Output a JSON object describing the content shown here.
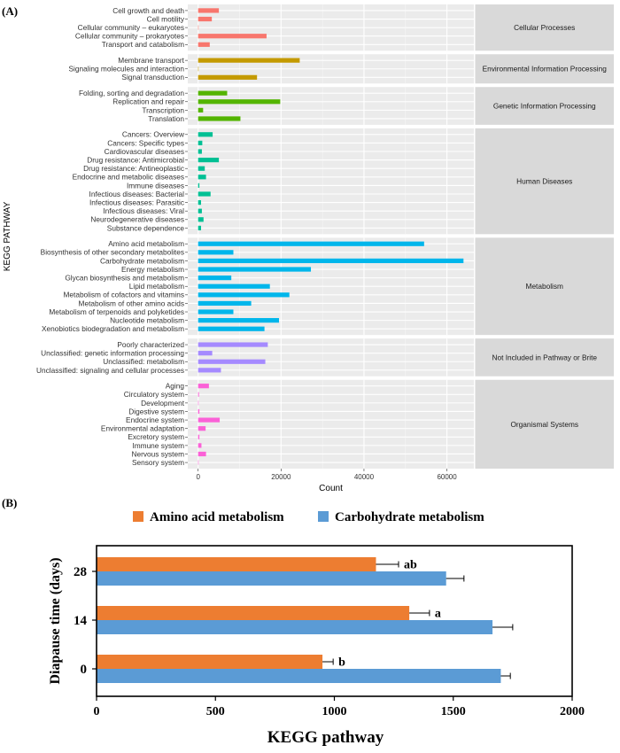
{
  "panel_a_label": "(A)",
  "panel_b_label": "(B)",
  "chart_data": [
    {
      "type": "bar",
      "orientation": "horizontal",
      "xlabel": "Count",
      "ylabel": "KEGG PATHWAY",
      "xlim": [
        -2500,
        66500
      ],
      "xticks": [
        0,
        20000,
        40000,
        60000
      ],
      "xtick_labels": [
        "0",
        "20000",
        "40000",
        "60000"
      ],
      "grid": true,
      "facets": [
        {
          "name": "Cellular Processes",
          "color": "#F8766D",
          "categories": [
            "Cell growth and death",
            "Cell motility",
            "Cellular community – eukaryotes",
            "Cellular community – prokaryotes",
            "Transport and catabolism"
          ],
          "values": [
            5000,
            3300,
            100,
            16500,
            2800
          ]
        },
        {
          "name": "Environmental Information Processing",
          "color": "#C49A00",
          "categories": [
            "Membrane transport",
            "Signaling molecules and interaction",
            "Signal transduction"
          ],
          "values": [
            24500,
            100,
            14200
          ]
        },
        {
          "name": "Genetic Information Processing",
          "color": "#53B400",
          "categories": [
            "Folding, sorting and degradation",
            "Replication and repair",
            "Transcription",
            "Translation"
          ],
          "values": [
            7000,
            19800,
            1200,
            10200
          ]
        },
        {
          "name": "Human Diseases",
          "color": "#00C094",
          "categories": [
            "Cancers: Overview",
            "Cancers: Specific types",
            "Cardiovascular diseases",
            "Drug resistance: Antimicrobial",
            "Drug resistance: Antineoplastic",
            "Endocrine and metabolic diseases",
            "Immune diseases",
            "Infectious diseases: Bacterial",
            "Infectious diseases: Parasitic",
            "Infectious diseases: Viral",
            "Neurodegenerative diseases",
            "Substance dependence"
          ],
          "values": [
            3500,
            1000,
            900,
            5000,
            1600,
            1900,
            300,
            3000,
            700,
            900,
            1300,
            700
          ]
        },
        {
          "name": "Metabolism",
          "color": "#00B6EB",
          "categories": [
            "Amino acid metabolism",
            "Biosynthesis of other secondary metabolites",
            "Carbohydrate metabolism",
            "Energy metabolism",
            "Glycan biosynthesis and metabolism",
            "Lipid metabolism",
            "Metabolism of cofactors and vitamins",
            "Metabolism of other amino acids",
            "Metabolism of terpenoids and polyketides",
            "Nucleotide metabolism",
            "Xenobiotics biodegradation and metabolism"
          ],
          "values": [
            54500,
            8500,
            64000,
            27200,
            8000,
            17300,
            22000,
            12800,
            8500,
            19500,
            16000
          ]
        },
        {
          "name": "Not Included in Pathway or Brite",
          "color": "#A58AFF",
          "categories": [
            "Poorly characterized",
            "Unclassified: genetic information processing",
            "Unclassified: metabolism",
            "Unclassified: signaling and cellular processes"
          ],
          "values": [
            16800,
            3400,
            16200,
            5500
          ]
        },
        {
          "name": "Organismal Systems",
          "color": "#FB61D7",
          "categories": [
            "Aging",
            "Circulatory system",
            "Development",
            "Digestive system",
            "Endocrine system",
            "Environmental adaptation",
            "Excretory system",
            "Immune system",
            "Nervous system",
            "Sensory system"
          ],
          "values": [
            2600,
            200,
            60,
            300,
            5200,
            1800,
            300,
            800,
            1900,
            60
          ]
        }
      ]
    },
    {
      "type": "bar",
      "orientation": "horizontal",
      "xlabel": "KEGG pathway",
      "ylabel": "Diapause time (days)",
      "xlim": [
        0,
        2000
      ],
      "xticks": [
        0,
        500,
        1000,
        1500,
        2000
      ],
      "xtick_labels": [
        "0",
        "500",
        "1000",
        "1500",
        "2000"
      ],
      "legend_position": "top",
      "categories": [
        "28",
        "14",
        "0"
      ],
      "series": [
        {
          "name": "Amino acid metabolism",
          "color": "#ED7D31",
          "values": [
            1175,
            1315,
            950
          ],
          "errors": [
            95,
            85,
            45
          ],
          "annotations": [
            "ab",
            "a",
            "b"
          ]
        },
        {
          "name": "Carbohydrate metabolism",
          "color": "#5B9BD5",
          "values": [
            1470,
            1665,
            1700
          ],
          "errors": [
            75,
            85,
            40
          ]
        }
      ]
    }
  ]
}
